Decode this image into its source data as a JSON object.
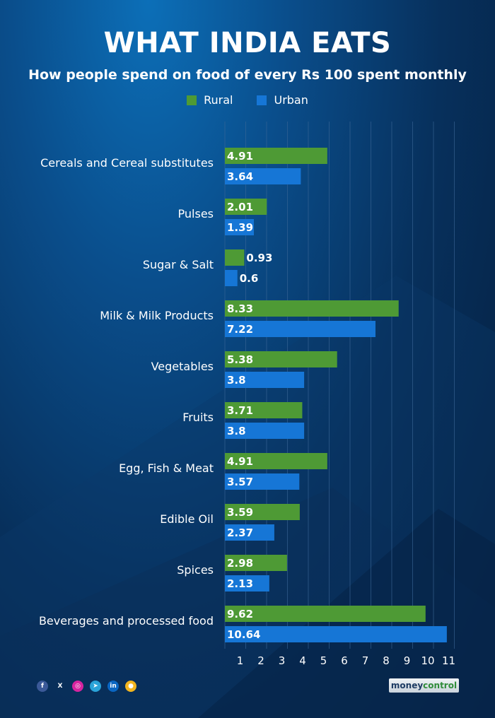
{
  "title": "WHAT INDIA EATS",
  "subtitle": "How people spend on food of every Rs 100 spent monthly",
  "colors": {
    "rural": "#4e9a35",
    "urban": "#1676d6",
    "grid": "#3b6797"
  },
  "chart_data": {
    "type": "bar",
    "orientation": "horizontal",
    "title": "WHAT INDIA EATS",
    "subtitle": "How people spend on food of every Rs 100 spent monthly",
    "legend_position": "top-center",
    "grid": true,
    "xlim": [
      0,
      11
    ],
    "x_ticks": [
      "1",
      "2",
      "3",
      "4",
      "5",
      "6",
      "7",
      "8",
      "9",
      "10",
      "11"
    ],
    "categories": [
      "Cereals and Cereal substitutes",
      "Pulses",
      "Sugar & Salt",
      "Milk & Milk Products",
      "Vegetables",
      "Fruits",
      "Egg, Fish & Meat",
      "Edible Oil",
      "Spices",
      "Beverages and processed food"
    ],
    "series": [
      {
        "name": "Rural",
        "values": [
          4.91,
          2.01,
          0.93,
          8.33,
          5.38,
          3.71,
          4.91,
          3.59,
          2.98,
          9.62
        ]
      },
      {
        "name": "Urban",
        "values": [
          3.64,
          1.39,
          0.6,
          7.22,
          3.8,
          3.8,
          3.57,
          2.37,
          2.13,
          10.64
        ]
      }
    ]
  },
  "social_icons": [
    "facebook-icon",
    "x-icon",
    "instagram-icon",
    "telegram-icon",
    "linkedin-icon",
    "koo-icon"
  ],
  "social_glyphs": [
    "f",
    "X",
    "◎",
    "➤",
    "in",
    "●"
  ],
  "brand": {
    "part1": "money",
    "part2": "control"
  }
}
